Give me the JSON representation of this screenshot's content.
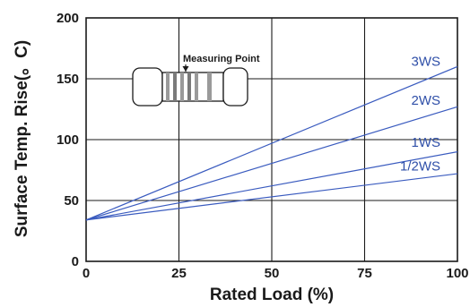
{
  "chart_data": {
    "type": "line",
    "xlabel": "Rated Load (%)",
    "ylabel": "Surface Temp. Rise(。C)",
    "xlim": [
      0,
      100
    ],
    "ylim": [
      0,
      200
    ],
    "x_ticks": [
      "0",
      "25",
      "50",
      "75",
      "100"
    ],
    "y_ticks": [
      "0",
      "50",
      "100",
      "150",
      "200"
    ],
    "grid": true,
    "series": [
      {
        "name": "3WS",
        "x": [
          0,
          100
        ],
        "values": [
          34,
          160
        ]
      },
      {
        "name": "2WS",
        "x": [
          0,
          100
        ],
        "values": [
          34,
          127
        ]
      },
      {
        "name": "1WS",
        "x": [
          0,
          100
        ],
        "values": [
          34,
          90
        ]
      },
      {
        "name": "1/2WS",
        "x": [
          0,
          100
        ],
        "values": [
          34,
          72
        ]
      }
    ],
    "annotation": "Measuring Point",
    "line_color": "#3a5bbf",
    "label_color": "#2f4fa8"
  }
}
